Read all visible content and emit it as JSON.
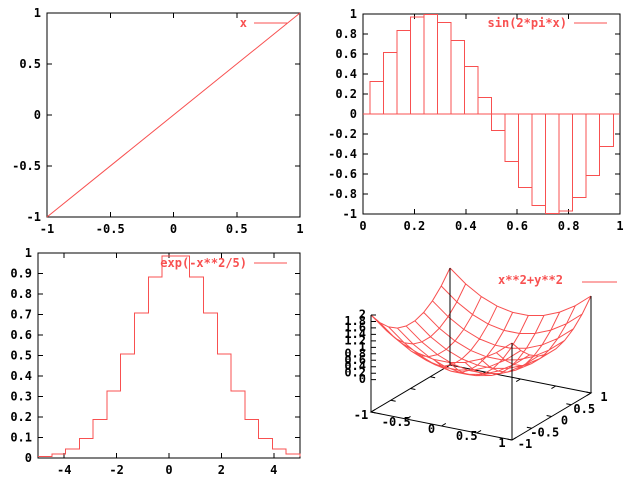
{
  "colors": {
    "line": "#f85050",
    "axis": "#000000",
    "background": "#ffffff",
    "text": "#000000"
  },
  "charts": [
    {
      "id": "linear",
      "type": "line",
      "legend": "x",
      "xlim": [
        -1,
        1
      ],
      "ylim": [
        -1,
        1
      ],
      "xticks": [
        -1,
        -0.5,
        0,
        0.5,
        1
      ],
      "yticks": [
        -1,
        -0.5,
        0,
        0.5,
        1
      ],
      "x": [
        -1,
        1
      ],
      "values": [
        -1,
        1
      ]
    },
    {
      "id": "sine-boxes",
      "type": "boxes",
      "legend": "sin(2*pi*x)",
      "xlim": [
        0,
        1
      ],
      "ylim": [
        -1,
        1
      ],
      "xticks": [
        0,
        0.2,
        0.4,
        0.6,
        0.8,
        1
      ],
      "yticks": [
        -1,
        -0.8,
        -0.6,
        -0.4,
        -0.2,
        0,
        0.2,
        0.4,
        0.6,
        0.8,
        1
      ],
      "x": [
        0,
        0.0526,
        0.1053,
        0.1579,
        0.2105,
        0.2632,
        0.3158,
        0.3684,
        0.4211,
        0.4737,
        0.5263,
        0.5789,
        0.6316,
        0.6842,
        0.7368,
        0.7895,
        0.8421,
        0.8947,
        0.9474,
        1
      ],
      "values": [
        0,
        0.3247,
        0.6142,
        0.8372,
        0.9694,
        0.9966,
        0.9158,
        0.7357,
        0.4759,
        0.1646,
        -0.1646,
        -0.4759,
        -0.7357,
        -0.9158,
        -0.9966,
        -0.9694,
        -0.8372,
        -0.6142,
        -0.3247,
        0
      ]
    },
    {
      "id": "gauss-steps",
      "type": "steps",
      "legend": "exp(-x**2/5)",
      "xlim": [
        -5,
        5
      ],
      "ylim": [
        0,
        1
      ],
      "xticks": [
        -4,
        -2,
        0,
        2,
        4
      ],
      "yticks": [
        0,
        0.1,
        0.2,
        0.3,
        0.4,
        0.5,
        0.6,
        0.7,
        0.8,
        0.9,
        1
      ],
      "x": [
        -5,
        -4.4737,
        -3.9474,
        -3.4211,
        -2.8947,
        -2.3684,
        -1.8421,
        -1.3158,
        -0.7895,
        -0.2632,
        0.2632,
        0.7895,
        1.3158,
        1.8421,
        2.3684,
        2.8947,
        3.4211,
        3.9474,
        4.4737,
        5
      ],
      "values": [
        0.0067,
        0.0183,
        0.0443,
        0.0963,
        0.1871,
        0.3257,
        0.5073,
        0.7073,
        0.8828,
        0.9862,
        0.9862,
        0.8828,
        0.7073,
        0.5073,
        0.3257,
        0.1871,
        0.0963,
        0.0443,
        0.0183,
        0.0067
      ]
    },
    {
      "id": "paraboloid-surface",
      "type": "surface3d",
      "legend": "x**2+y**2",
      "xlim": [
        -1,
        1
      ],
      "ylim": [
        -1,
        1
      ],
      "zlim": [
        0,
        2
      ],
      "xticks": [
        -1,
        -0.5,
        0,
        0.5,
        1
      ],
      "yticks": [
        -1,
        -0.5,
        0,
        0.5,
        1
      ],
      "zticks": [
        0,
        0.2,
        0.4,
        0.6,
        0.8,
        1,
        1.2,
        1.4,
        1.6,
        1.8,
        2
      ],
      "samples": [
        -1,
        -0.7778,
        -0.5556,
        -0.3333,
        -0.1111,
        0.1111,
        0.3333,
        0.5556,
        0.7778,
        1
      ],
      "z": [
        [
          2,
          1.6049,
          1.3086,
          1.1111,
          1.0123,
          1.0123,
          1.1111,
          1.3086,
          1.6049,
          2
        ],
        [
          1.6049,
          1.2098,
          0.9135,
          0.716,
          0.6172,
          0.6172,
          0.716,
          0.9135,
          1.2098,
          1.6049
        ],
        [
          1.3086,
          0.9135,
          0.6172,
          0.4197,
          0.3209,
          0.3209,
          0.4197,
          0.6172,
          0.9135,
          1.3086
        ],
        [
          1.1111,
          0.716,
          0.4197,
          0.2222,
          0.1234,
          0.1234,
          0.2222,
          0.4197,
          0.716,
          1.1111
        ],
        [
          1.0123,
          0.6172,
          0.3209,
          0.1234,
          0.0246,
          0.0246,
          0.1234,
          0.3209,
          0.6172,
          1.0123
        ],
        [
          1.0123,
          0.6172,
          0.3209,
          0.1234,
          0.0246,
          0.0246,
          0.1234,
          0.3209,
          0.6172,
          1.0123
        ],
        [
          1.1111,
          0.716,
          0.4197,
          0.2222,
          0.1234,
          0.1234,
          0.2222,
          0.4197,
          0.716,
          1.1111
        ],
        [
          1.3086,
          0.9135,
          0.6172,
          0.4197,
          0.3209,
          0.3209,
          0.4197,
          0.6172,
          0.9135,
          1.3086
        ],
        [
          1.6049,
          1.2098,
          0.9135,
          0.716,
          0.6172,
          0.6172,
          0.716,
          0.9135,
          1.2098,
          1.6049
        ],
        [
          2,
          1.6049,
          1.3086,
          1.1111,
          1.0123,
          1.0123,
          1.1111,
          1.3086,
          1.6049,
          2
        ]
      ]
    }
  ]
}
